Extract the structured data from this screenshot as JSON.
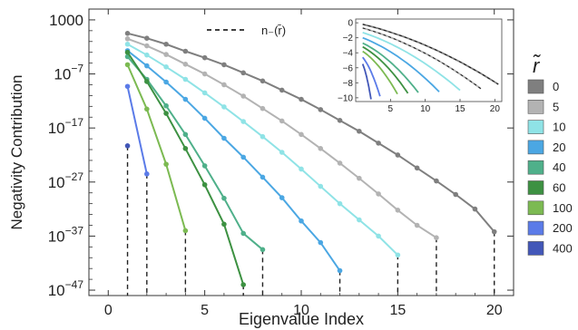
{
  "chart_data": {
    "type": "line",
    "xlabel": "Eigenvalue Index",
    "ylabel": "Negativity Contribution",
    "y_scale": "log10",
    "xlim": [
      -1,
      21
    ],
    "ylim_log10": [
      -48,
      5
    ],
    "xticks": [
      0,
      5,
      10,
      15,
      20
    ],
    "yticks": [
      {
        "exp": 3,
        "label": "1000"
      },
      {
        "exp": -7,
        "label": "10",
        "sup": "−7"
      },
      {
        "exp": -17,
        "label": "10",
        "sup": "−17"
      },
      {
        "exp": -27,
        "label": "10",
        "sup": "−27"
      },
      {
        "exp": -37,
        "label": "10",
        "sup": "−37"
      },
      {
        "exp": -47,
        "label": "10",
        "sup": "−47"
      }
    ],
    "legend_title": "r̃",
    "legend_placement": "right",
    "annotation": "n₋(r̄)",
    "annotation_note": "dashed vertical lines mark n₋(r̄) for each series",
    "series": [
      {
        "name": "0",
        "color": "#7f7f7f",
        "n_minus": 20,
        "log10_values": [
          0.5,
          -0.4,
          -1.5,
          -2.8,
          -4.0,
          -5.3,
          -6.8,
          -8.3,
          -10.0,
          -11.7,
          -13.6,
          -15.6,
          -17.6,
          -19.8,
          -22.0,
          -24.4,
          -26.8,
          -29.3,
          -32.0,
          -36.2
        ]
      },
      {
        "name": "5",
        "color": "#b3b3b3",
        "n_minus": 17,
        "log10_values": [
          -0.5,
          -1.8,
          -3.4,
          -5.2,
          -7.0,
          -9.0,
          -11.1,
          -13.4,
          -15.7,
          -18.2,
          -20.8,
          -23.5,
          -26.3,
          -29.2,
          -32.2,
          -35.0,
          -37.3
        ]
      },
      {
        "name": "10",
        "color": "#8fe3e6",
        "n_minus": 15,
        "log10_values": [
          -1.5,
          -3.5,
          -5.7,
          -8.0,
          -10.5,
          -13.1,
          -15.8,
          -18.6,
          -21.5,
          -24.6,
          -27.8,
          -31.0,
          -34.0,
          -37.0,
          -40.5
        ]
      },
      {
        "name": "20",
        "color": "#4ba7e3",
        "n_minus": 12,
        "log10_values": [
          -2.7,
          -5.5,
          -8.5,
          -11.7,
          -15.2,
          -18.9,
          -22.4,
          -26.1,
          -29.9,
          -34.2,
          -38.2,
          -43.4
        ]
      },
      {
        "name": "40",
        "color": "#4fb08a",
        "n_minus": 8,
        "log10_values": [
          -3.8,
          -8.0,
          -12.9,
          -18.2,
          -24.0,
          -30.0,
          -36.5,
          -39.5
        ]
      },
      {
        "name": "60",
        "color": "#3d9142",
        "n_minus": 7,
        "log10_values": [
          -3.0,
          -8.4,
          -14.3,
          -20.8,
          -27.5,
          -34.8,
          -46.0
        ]
      },
      {
        "name": "100",
        "color": "#7cba52",
        "n_minus": 4,
        "log10_values": [
          -5.3,
          -13.5,
          -23.7,
          -36.0
        ]
      },
      {
        "name": "200",
        "color": "#5b7be8",
        "n_minus": 2,
        "log10_values": [
          -9.3,
          -25.5
        ]
      },
      {
        "name": "400",
        "color": "#4257b8",
        "n_minus": 1,
        "log10_values": [
          -20.3
        ]
      }
    ],
    "inset": {
      "type": "line",
      "xlim": [
        0,
        21
      ],
      "ylim": [
        -10.5,
        0.5
      ],
      "xticks": [
        5,
        10,
        15,
        20
      ],
      "yticks": [
        0,
        -2,
        -4,
        -6,
        -8,
        -10
      ],
      "curves": [
        {
          "name": "0",
          "color": "#7f7f7f",
          "x": [
            1,
            20.5
          ],
          "y_start": -0.2,
          "y_end": -8.2,
          "dashed_over": true
        },
        {
          "name": "5",
          "color": "#b3b3b3",
          "x": [
            1,
            18
          ],
          "y_start": -0.7,
          "y_end": -8.8,
          "dashed_over": true
        },
        {
          "name": "10",
          "color": "#8fe3e6",
          "x": [
            1,
            15
          ],
          "y_start": -1.3,
          "y_end": -9.0
        },
        {
          "name": "20",
          "color": "#4ba7e3",
          "x": [
            1,
            12
          ],
          "y_start": -2.0,
          "y_end": -9.2
        },
        {
          "name": "40",
          "color": "#4fb08a",
          "x": [
            1,
            9
          ],
          "y_start": -2.7,
          "y_end": -9.3
        },
        {
          "name": "60",
          "color": "#3d9142",
          "x": [
            1,
            7.5
          ],
          "y_start": -3.2,
          "y_end": -9.4
        },
        {
          "name": "100",
          "color": "#7cba52",
          "x": [
            1,
            6
          ],
          "y_start": -3.8,
          "y_end": -9.5
        },
        {
          "name": "200",
          "color": "#5b7be8",
          "x": [
            1,
            3.5
          ],
          "y_start": -4.6,
          "y_end": -9.8
        },
        {
          "name": "400",
          "color": "#4257b8",
          "x": [
            1,
            2.2
          ],
          "y_start": -5.5,
          "y_end": -10.2
        }
      ]
    }
  }
}
